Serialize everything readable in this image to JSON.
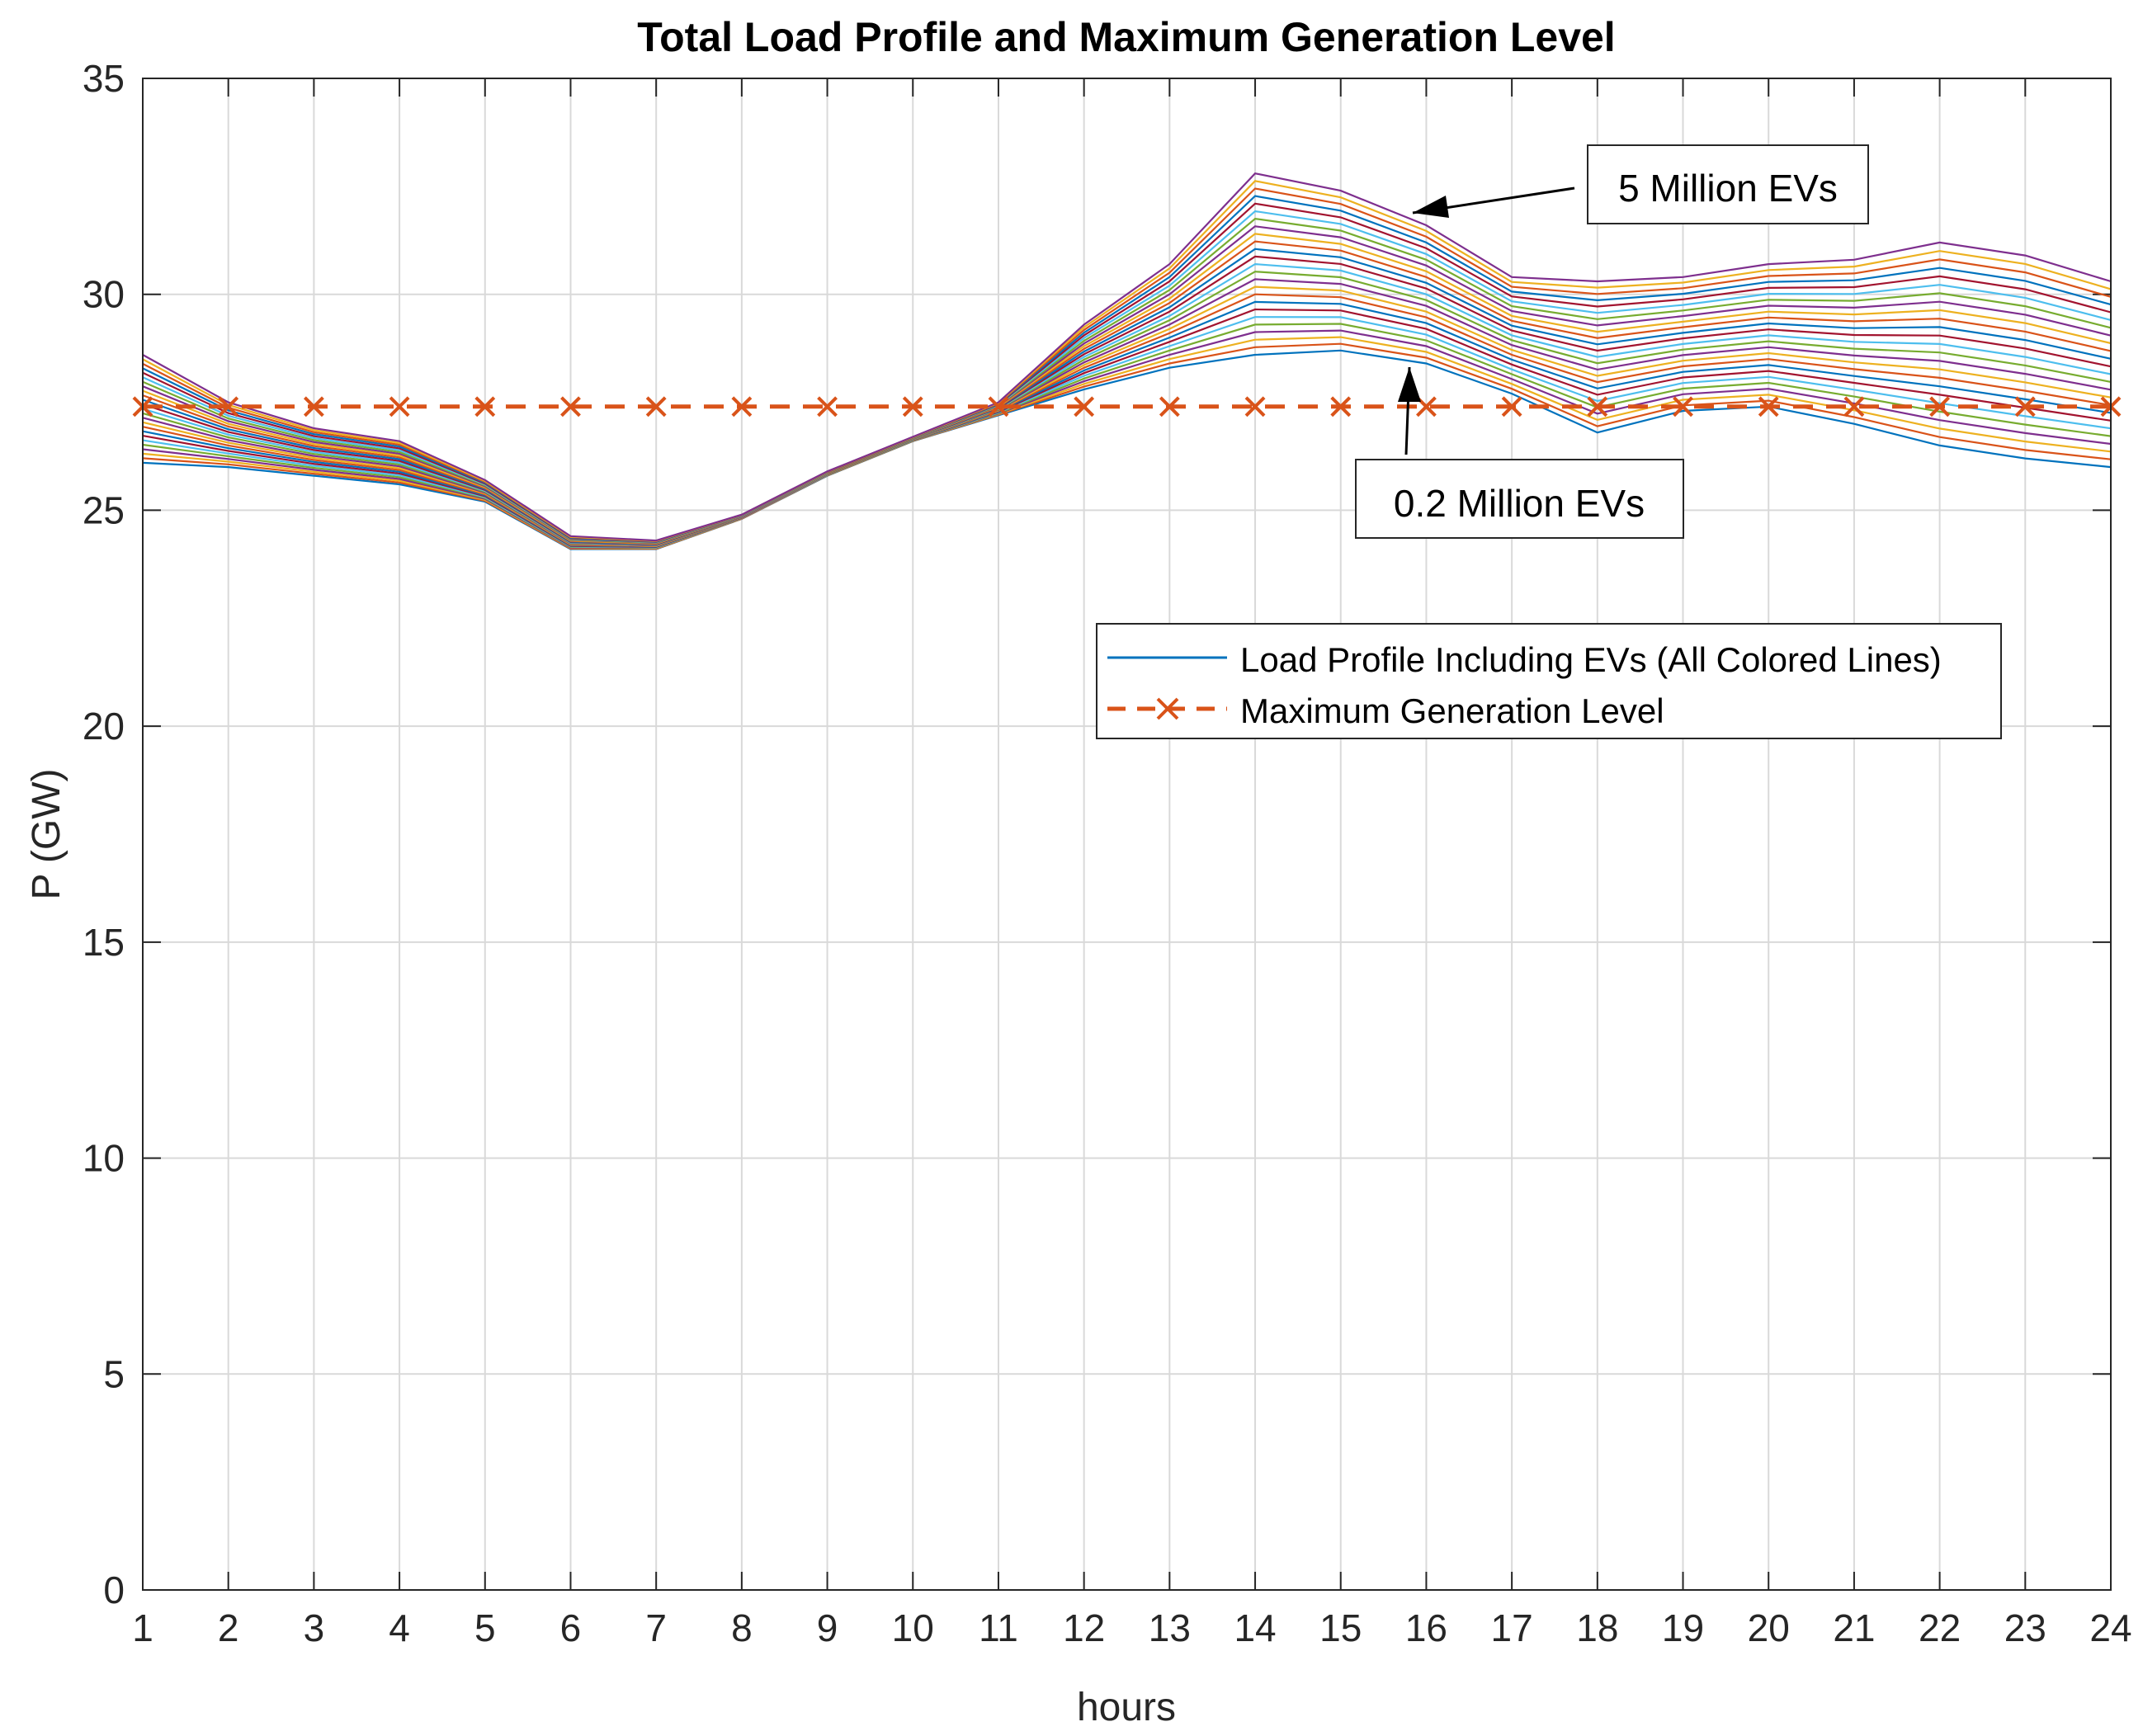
{
  "chart_data": {
    "type": "line",
    "title": "Total Load Profile and Maximum Generation Level",
    "xlabel": "hours",
    "ylabel": "P (GW)",
    "xlim": [
      1,
      24
    ],
    "ylim": [
      0,
      35
    ],
    "x_ticks": [
      1,
      2,
      3,
      4,
      5,
      6,
      7,
      8,
      9,
      10,
      11,
      12,
      13,
      14,
      15,
      16,
      17,
      18,
      19,
      20,
      21,
      22,
      23,
      24
    ],
    "y_ticks": [
      0,
      5,
      10,
      15,
      20,
      25,
      30,
      35
    ],
    "grid": true,
    "x": [
      1,
      2,
      3,
      4,
      5,
      6,
      7,
      8,
      9,
      10,
      11,
      12,
      13,
      14,
      15,
      16,
      17,
      18,
      19,
      20,
      21,
      22,
      23,
      24
    ],
    "ev_scenarios_millions": {
      "min": 0.2,
      "max": 5,
      "count": 25
    },
    "load_profile_min": [
      26.1,
      26.0,
      25.8,
      25.6,
      25.2,
      24.1,
      24.1,
      24.8,
      25.8,
      26.6,
      27.2,
      27.8,
      28.3,
      28.6,
      28.7,
      28.4,
      27.7,
      26.8,
      27.3,
      27.4,
      27.0,
      26.5,
      26.2,
      26.0
    ],
    "load_profile_max": [
      28.6,
      27.5,
      26.9,
      26.6,
      25.7,
      24.4,
      24.3,
      24.9,
      25.9,
      26.7,
      27.5,
      29.3,
      30.7,
      32.8,
      32.4,
      31.6,
      30.4,
      30.3,
      30.4,
      30.7,
      30.8,
      31.2,
      30.9,
      30.3
    ],
    "series": [
      {
        "name": "Load Profile Including EVs (All Colored Lines)",
        "style": "solid",
        "color": "#0072BD"
      },
      {
        "name": "Maximum Generation Level",
        "style": "dashed-x",
        "color": "#D95319",
        "value": 27.4
      }
    ],
    "line_colors": [
      "#0072BD",
      "#D95319",
      "#EDB120",
      "#7E2F8E",
      "#77AC30",
      "#4DBEEE",
      "#A2142F"
    ],
    "legend_position": "right, above middle",
    "annotations": [
      {
        "text": "5 Million EVs",
        "arrow_to": {
          "x": 15.8,
          "y": 31.8
        }
      },
      {
        "text": "0.2 Million EVs",
        "arrow_to": {
          "x": 15.8,
          "y": 28.4
        }
      }
    ]
  }
}
